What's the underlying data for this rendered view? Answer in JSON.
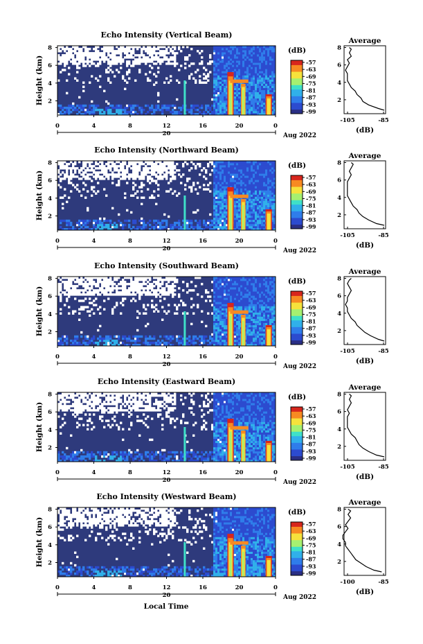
{
  "figure": {
    "xlabel": "Local Time",
    "date_day": "20",
    "date_month": "Aug 2022",
    "unit": "(dB)",
    "average_title": "Average",
    "colorbar_ticks": [
      "-57",
      "-63",
      "-69",
      "-75",
      "-81",
      "-87",
      "-93",
      "-99"
    ],
    "colors": {
      "background": "#ffffff",
      "base": "#2e3a7c",
      "colormap": [
        "#2a2f85",
        "#2c4bcf",
        "#2f7dea",
        "#30b0ea",
        "#3fe0c8",
        "#a6f070",
        "#f6e23c",
        "#f78a22",
        "#d7261d"
      ]
    }
  },
  "chart_data": [
    {
      "type": "heatmap",
      "title": "Echo Intensity (Vertical Beam)",
      "ylabel": "Height (km)",
      "xlabel": "Local Time",
      "x_ticks": [
        "0",
        "4",
        "8",
        "12",
        "16",
        "20",
        "0"
      ],
      "y_ticks": [
        "2",
        "4",
        "6",
        "8"
      ],
      "xlim_hours": [
        0,
        24
      ],
      "ylim_km": [
        0.4,
        8.2
      ],
      "zlim_db": [
        -99,
        -57
      ],
      "profile": {
        "title": "Average",
        "xlabel": "(dB)",
        "x_ticks": [
          "-105",
          "-85"
        ],
        "y_ticks": [
          "2",
          "4",
          "6",
          "8"
        ],
        "height_km": [
          0.8,
          1.0,
          1.4,
          1.8,
          2.2,
          2.6,
          3.0,
          3.4,
          3.8,
          4.2,
          4.6,
          5.0,
          5.4,
          5.8,
          6.2,
          6.6,
          7.0,
          7.4,
          7.8,
          8.0
        ],
        "value_db": [
          -84,
          -88,
          -93,
          -96,
          -97,
          -99,
          -100,
          -102,
          -103,
          -104,
          -104,
          -104,
          -105,
          -104,
          -103,
          -104,
          -102,
          -103,
          -102,
          -103
        ]
      }
    },
    {
      "type": "heatmap",
      "title": "Echo Intensity (Northward Beam)",
      "ylabel": "Height (km)",
      "xlabel": "Local Time",
      "x_ticks": [
        "0",
        "4",
        "8",
        "12",
        "16",
        "20",
        "0"
      ],
      "y_ticks": [
        "2",
        "4",
        "6",
        "8"
      ],
      "xlim_hours": [
        0,
        24
      ],
      "ylim_km": [
        0.4,
        8.2
      ],
      "zlim_db": [
        -99,
        -57
      ],
      "profile": {
        "title": "Average",
        "xlabel": "(dB)",
        "x_ticks": [
          "-105",
          "-85"
        ],
        "y_ticks": [
          "2",
          "4",
          "6",
          "8"
        ],
        "height_km": [
          0.8,
          1.0,
          1.4,
          1.8,
          2.2,
          2.6,
          3.0,
          3.4,
          3.8,
          4.2,
          4.6,
          5.0,
          5.4,
          5.8,
          6.2,
          6.6,
          7.0,
          7.4,
          7.8,
          8.0
        ],
        "value_db": [
          -85,
          -89,
          -93,
          -96,
          -98,
          -99,
          -101,
          -102,
          -103,
          -104,
          -104,
          -104,
          -104,
          -104,
          -103,
          -102,
          -103,
          -102,
          -101,
          -102
        ]
      }
    },
    {
      "type": "heatmap",
      "title": "Echo Intensity (Southward Beam)",
      "ylabel": "Height (km)",
      "xlabel": "Local Time",
      "x_ticks": [
        "0",
        "4",
        "8",
        "12",
        "16",
        "20",
        "0"
      ],
      "y_ticks": [
        "2",
        "4",
        "6",
        "8"
      ],
      "xlim_hours": [
        0,
        24
      ],
      "ylim_km": [
        0.4,
        8.2
      ],
      "zlim_db": [
        -99,
        -57
      ],
      "profile": {
        "title": "Average",
        "xlabel": "(dB)",
        "x_ticks": [
          "-105",
          "-85"
        ],
        "y_ticks": [
          "2",
          "4",
          "6",
          "8"
        ],
        "height_km": [
          0.8,
          1.0,
          1.4,
          1.8,
          2.2,
          2.6,
          3.0,
          3.4,
          3.8,
          4.2,
          4.6,
          5.0,
          5.4,
          5.8,
          6.2,
          6.6,
          7.0,
          7.4,
          7.8,
          8.0
        ],
        "value_db": [
          -85,
          -88,
          -92,
          -95,
          -97,
          -99,
          -100,
          -102,
          -103,
          -104,
          -104,
          -105,
          -104,
          -104,
          -103,
          -102,
          -103,
          -104,
          -103,
          -102
        ]
      }
    },
    {
      "type": "heatmap",
      "title": "Echo Intensity (Eastward Beam)",
      "ylabel": "Height (km)",
      "xlabel": "Local Time",
      "x_ticks": [
        "0",
        "4",
        "8",
        "12",
        "16",
        "20",
        "0"
      ],
      "y_ticks": [
        "2",
        "4",
        "6",
        "8"
      ],
      "xlim_hours": [
        0,
        24
      ],
      "ylim_km": [
        0.4,
        8.2
      ],
      "zlim_db": [
        -99,
        -57
      ],
      "profile": {
        "title": "Average",
        "xlabel": "(dB)",
        "x_ticks": [
          "-105",
          "-85"
        ],
        "y_ticks": [
          "2",
          "4",
          "6",
          "8"
        ],
        "height_km": [
          0.8,
          1.0,
          1.4,
          1.8,
          2.2,
          2.6,
          3.0,
          3.4,
          3.8,
          4.2,
          4.6,
          5.0,
          5.4,
          5.8,
          6.2,
          6.6,
          7.0,
          7.4,
          7.8,
          8.0
        ],
        "value_db": [
          -85,
          -89,
          -93,
          -96,
          -98,
          -99,
          -100,
          -102,
          -103,
          -104,
          -104,
          -104,
          -104,
          -103,
          -104,
          -103,
          -102,
          -103,
          -102,
          -103
        ]
      }
    },
    {
      "type": "heatmap",
      "title": "Echo Intensity (Westward Beam)",
      "ylabel": "Height (km)",
      "xlabel": "Local Time",
      "x_ticks": [
        "0",
        "4",
        "8",
        "12",
        "16",
        "20",
        "0"
      ],
      "y_ticks": [
        "2",
        "4",
        "6",
        "8"
      ],
      "xlim_hours": [
        0,
        24
      ],
      "ylim_km": [
        0.4,
        8.2
      ],
      "zlim_db": [
        -99,
        -57
      ],
      "profile": {
        "title": "Average",
        "xlabel": "(dB)",
        "x_ticks": [
          "-100",
          "-85"
        ],
        "y_ticks": [
          "2",
          "4",
          "6",
          "8"
        ],
        "height_km": [
          0.8,
          1.0,
          1.4,
          1.8,
          2.2,
          2.6,
          3.0,
          3.4,
          3.8,
          4.2,
          4.6,
          5.0,
          5.4,
          5.8,
          6.2,
          6.6,
          7.0,
          7.4,
          7.8,
          8.0
        ],
        "value_db": [
          -86,
          -89,
          -92,
          -94,
          -96,
          -97,
          -98,
          -99,
          -100,
          -100,
          -101,
          -101,
          -100,
          -99,
          -100,
          -99,
          -98,
          -99,
          -98,
          -99
        ]
      }
    }
  ]
}
